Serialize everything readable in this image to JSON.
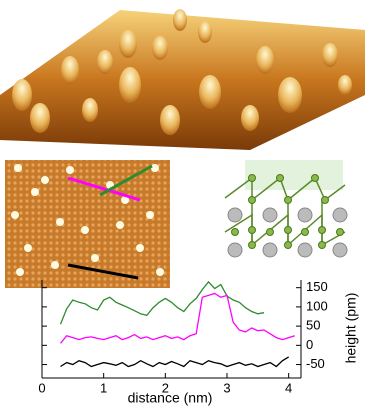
{
  "chart_data": {
    "type": "line",
    "x_label": "distance (nm)",
    "y_label": "height (pm)",
    "xlim": [
      0,
      4.2
    ],
    "xticks": [
      0,
      1,
      2,
      3,
      4
    ],
    "ylim": [
      -85,
      170
    ],
    "yticks": [
      150,
      100,
      50,
      0,
      -50
    ],
    "series": [
      {
        "color": "#2e8b2e",
        "x": [
          0.3,
          0.4,
          0.5,
          0.6,
          0.7,
          0.8,
          0.9,
          1.0,
          1.1,
          1.2,
          1.3,
          1.4,
          1.5,
          1.6,
          1.7,
          1.8,
          1.9,
          2.0,
          2.1,
          2.2,
          2.3,
          2.4,
          2.5,
          2.6,
          2.7,
          2.8,
          2.9,
          3.0,
          3.1,
          3.2,
          3.3,
          3.4,
          3.5,
          3.6
        ],
        "values": [
          55,
          95,
          118,
          112,
          108,
          98,
          92,
          118,
          125,
          112,
          105,
          98,
          90,
          82,
          78,
          98,
          112,
          122,
          112,
          98,
          88,
          108,
          122,
          145,
          165,
          148,
          158,
          128,
          118,
          112,
          98,
          88,
          82,
          85
        ]
      },
      {
        "color": "#ff00ff",
        "x": [
          0.3,
          0.4,
          0.5,
          0.6,
          0.7,
          0.8,
          0.9,
          1.0,
          1.1,
          1.2,
          1.3,
          1.4,
          1.5,
          1.6,
          1.7,
          1.8,
          1.9,
          2.0,
          2.1,
          2.2,
          2.3,
          2.4,
          2.5,
          2.6,
          2.7,
          2.8,
          2.9,
          3.0,
          3.1,
          3.2,
          3.3,
          3.4,
          3.5,
          3.6,
          3.7,
          3.8,
          3.9,
          4.0,
          4.1
        ],
        "values": [
          5,
          25,
          20,
          15,
          20,
          22,
          18,
          15,
          20,
          25,
          15,
          20,
          28,
          18,
          22,
          15,
          20,
          25,
          18,
          22,
          15,
          25,
          30,
          125,
          130,
          135,
          125,
          130,
          60,
          40,
          35,
          45,
          38,
          40,
          30,
          20,
          15,
          20,
          25
        ]
      },
      {
        "color": "#000000",
        "x": [
          0.3,
          0.4,
          0.5,
          0.6,
          0.7,
          0.8,
          0.9,
          1.0,
          1.1,
          1.2,
          1.3,
          1.4,
          1.5,
          1.6,
          1.7,
          1.8,
          1.9,
          2.0,
          2.1,
          2.2,
          2.3,
          2.4,
          2.5,
          2.6,
          2.7,
          2.8,
          2.9,
          3.0,
          3.1,
          3.2,
          3.3,
          3.4,
          3.5,
          3.6,
          3.7,
          3.8,
          3.9,
          4.0
        ],
        "values": [
          -55,
          -45,
          -50,
          -40,
          -45,
          -55,
          -50,
          -45,
          -48,
          -52,
          -45,
          -55,
          -50,
          -40,
          -48,
          -55,
          -45,
          -50,
          -42,
          -48,
          -55,
          -40,
          -45,
          -50,
          -40,
          -45,
          -48,
          -55,
          -50,
          -45,
          -52,
          -48,
          -55,
          -50,
          -45,
          -55,
          -40,
          -30
        ]
      }
    ]
  }
}
